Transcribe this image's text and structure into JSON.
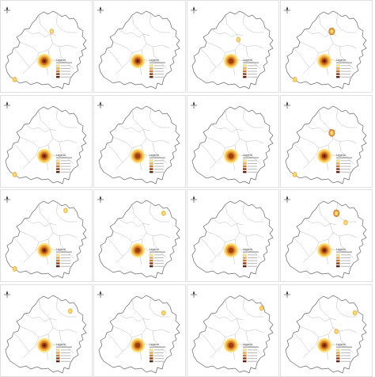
{
  "figure": {
    "rows": 4,
    "cols": 4,
    "panel_count": 16
  },
  "legend": {
    "title": "Legend",
    "classes": [
      {
        "color": "#ffe27a"
      },
      {
        "color": "#f2b348"
      },
      {
        "color": "#d27a26"
      },
      {
        "color": "#9c3f10"
      },
      {
        "color": "#5c1a05"
      }
    ]
  },
  "map_style": {
    "boundary_color": "#6a6a6a",
    "district_line_color": "#b5b5b5",
    "background_color": "#ffffff"
  },
  "panels": [
    {
      "hotspot_level": 5,
      "extra_spots": [
        [
          0.55,
          0.33,
          1
        ],
        [
          0.15,
          0.85,
          1
        ]
      ]
    },
    {
      "hotspot_level": 5,
      "extra_spots": []
    },
    {
      "hotspot_level": 4,
      "extra_spots": [
        [
          0.55,
          0.42,
          1
        ]
      ]
    },
    {
      "hotspot_level": 5,
      "extra_spots": [
        [
          0.55,
          0.33,
          2
        ],
        [
          0.15,
          0.85,
          1
        ]
      ]
    },
    {
      "hotspot_level": 5,
      "extra_spots": [
        [
          0.15,
          0.85,
          1
        ]
      ]
    },
    {
      "hotspot_level": 4,
      "extra_spots": []
    },
    {
      "hotspot_level": 4,
      "extra_spots": []
    },
    {
      "hotspot_level": 5,
      "extra_spots": [
        [
          0.55,
          0.4,
          2
        ],
        [
          0.15,
          0.85,
          1
        ]
      ]
    },
    {
      "hotspot_level": 5,
      "extra_spots": [
        [
          0.7,
          0.22,
          1
        ],
        [
          0.15,
          0.85,
          1
        ]
      ]
    },
    {
      "hotspot_level": 4,
      "extra_spots": [
        [
          0.75,
          0.25,
          1
        ]
      ]
    },
    {
      "hotspot_level": 4,
      "extra_spots": []
    },
    {
      "hotspot_level": 5,
      "extra_spots": [
        [
          0.6,
          0.25,
          2
        ],
        [
          0.7,
          0.35,
          1
        ]
      ]
    },
    {
      "hotspot_level": 5,
      "extra_spots": [
        [
          0.75,
          0.28,
          1
        ]
      ]
    },
    {
      "hotspot_level": 4,
      "extra_spots": [
        [
          0.75,
          0.3,
          1
        ]
      ]
    },
    {
      "hotspot_level": 4,
      "extra_spots": [
        [
          0.8,
          0.25,
          1
        ]
      ]
    },
    {
      "hotspot_level": 5,
      "extra_spots": [
        [
          0.8,
          0.3,
          1
        ],
        [
          0.6,
          0.5,
          1
        ]
      ]
    }
  ]
}
